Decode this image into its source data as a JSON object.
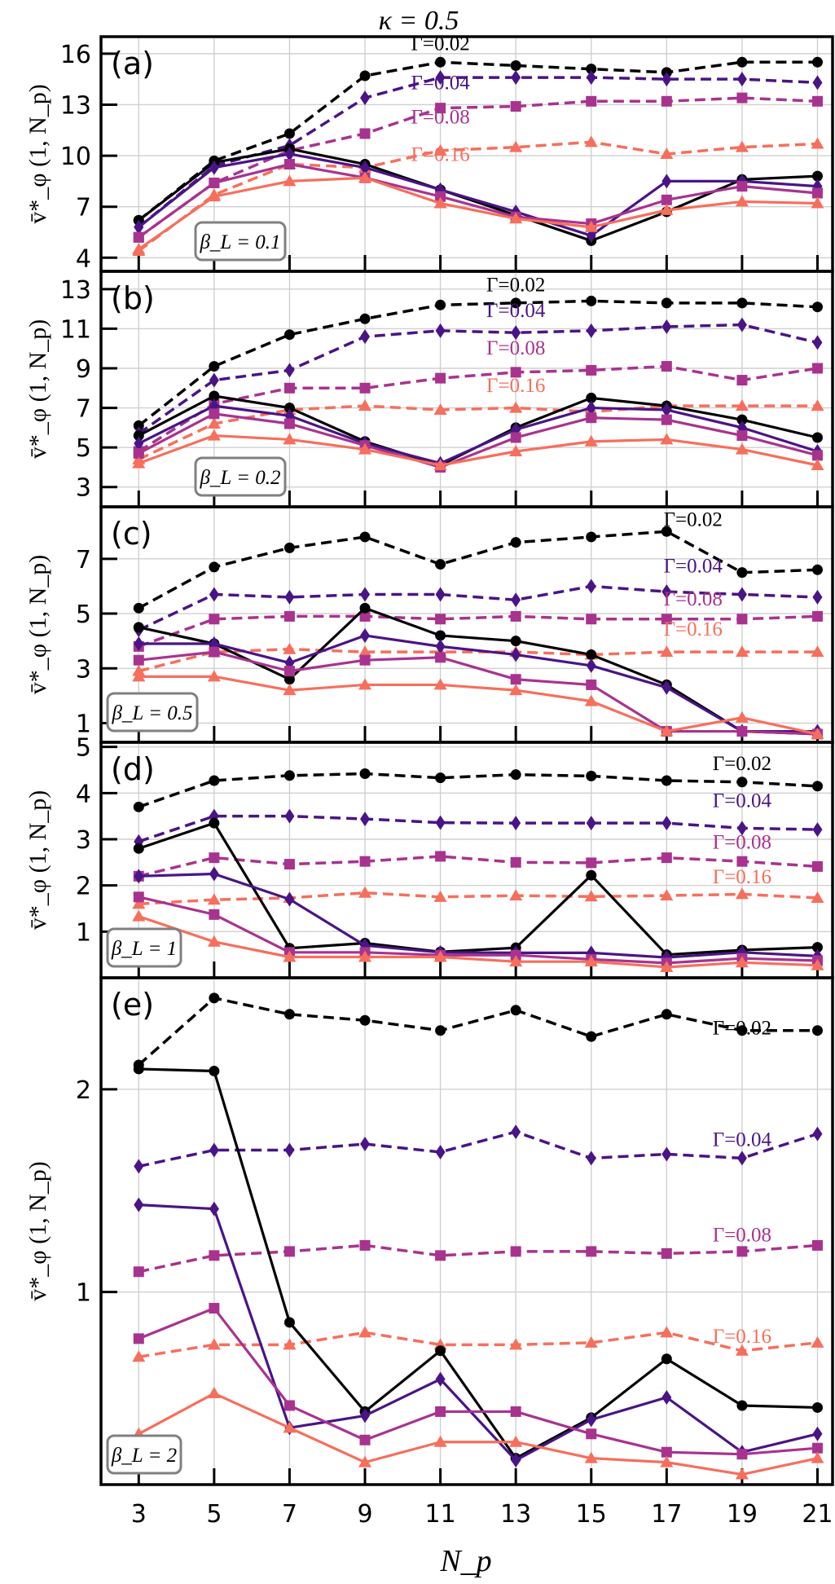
{
  "figure": {
    "title": "κ = 0.5",
    "xlabel": "N_p",
    "ylabel": "v̄*_φ (1, N_p)"
  },
  "legend": {
    "series_colors": {
      "0.02": "#000000",
      "0.04": "#4a1486",
      "0.08": "#a8338f",
      "0.16": "#f66f5c"
    },
    "line_styles": {
      "dashed": "Γ (driven) series",
      "solid": "companion series"
    }
  },
  "chart_data": [
    {
      "type": "line",
      "panel": "(a)",
      "annotation": "β_L = 0.1",
      "x": [
        3,
        5,
        7,
        9,
        11,
        13,
        15,
        17,
        19,
        21
      ],
      "yticks": [
        4,
        7,
        10,
        13,
        16
      ],
      "ylim": [
        3.2,
        17.0
      ],
      "grid": true,
      "series": [
        {
          "name": "Γ=0.02",
          "gamma": "0.02",
          "style": "dashed",
          "marker": "circle",
          "values": [
            6.2,
            9.7,
            11.3,
            14.7,
            15.5,
            15.3,
            15.1,
            14.9,
            15.5,
            15.5
          ]
        },
        {
          "name": "Γ=0.04",
          "gamma": "0.04",
          "style": "dashed",
          "marker": "diamond",
          "values": [
            5.8,
            9.4,
            10.6,
            13.4,
            14.6,
            14.6,
            14.6,
            14.5,
            14.5,
            14.3
          ]
        },
        {
          "name": "Γ=0.08",
          "gamma": "0.08",
          "style": "dashed",
          "marker": "square",
          "values": [
            5.2,
            8.4,
            10.3,
            11.3,
            12.8,
            12.9,
            13.2,
            13.2,
            13.4,
            13.2
          ]
        },
        {
          "name": "Γ=0.16",
          "gamma": "0.16",
          "style": "dashed",
          "marker": "triangle",
          "values": [
            4.4,
            7.7,
            9.5,
            9.3,
            10.3,
            10.5,
            10.8,
            10.1,
            10.5,
            10.7
          ]
        },
        {
          "name": "Γ=0.02 solid",
          "gamma": "0.02",
          "style": "solid",
          "marker": "circle",
          "values": [
            6.2,
            9.6,
            10.4,
            9.5,
            8.0,
            6.5,
            5.0,
            6.7,
            8.6,
            8.8
          ]
        },
        {
          "name": "Γ=0.04 solid",
          "gamma": "0.04",
          "style": "solid",
          "marker": "diamond",
          "values": [
            5.8,
            9.3,
            10.1,
            9.3,
            8.0,
            6.7,
            5.3,
            8.5,
            8.5,
            8.2
          ]
        },
        {
          "name": "Γ=0.08 solid",
          "gamma": "0.08",
          "style": "solid",
          "marker": "square",
          "values": [
            5.2,
            8.4,
            9.5,
            8.7,
            7.6,
            6.4,
            6.0,
            7.4,
            8.2,
            7.8
          ]
        },
        {
          "name": "Γ=0.16 solid",
          "gamma": "0.16",
          "style": "solid",
          "marker": "triangle",
          "values": [
            4.5,
            7.6,
            8.5,
            8.7,
            7.2,
            6.3,
            5.8,
            6.8,
            7.3,
            7.2
          ]
        }
      ],
      "labels": [
        {
          "text": "Γ=0.02",
          "gamma": "0.02",
          "x": 11,
          "y": 16.2
        },
        {
          "text": "Γ=0.04",
          "gamma": "0.04",
          "x": 11,
          "y": 13.9
        },
        {
          "text": "Γ=0.08",
          "gamma": "0.08",
          "x": 11,
          "y": 11.9
        },
        {
          "text": "Γ=0.16",
          "gamma": "0.16",
          "x": 11,
          "y": 9.7
        }
      ]
    },
    {
      "type": "line",
      "panel": "(b)",
      "annotation": "β_L = 0.2",
      "x": [
        3,
        5,
        7,
        9,
        11,
        13,
        15,
        17,
        19,
        21
      ],
      "yticks": [
        3,
        5,
        7,
        9,
        11,
        13
      ],
      "ylim": [
        2.0,
        13.9
      ],
      "grid": true,
      "series": [
        {
          "name": "Γ=0.02",
          "gamma": "0.02",
          "style": "dashed",
          "marker": "circle",
          "values": [
            6.1,
            9.1,
            10.7,
            11.5,
            12.2,
            12.3,
            12.4,
            12.3,
            12.3,
            12.1
          ]
        },
        {
          "name": "Γ=0.04",
          "gamma": "0.04",
          "style": "dashed",
          "marker": "diamond",
          "values": [
            5.7,
            8.4,
            8.9,
            10.6,
            10.9,
            10.8,
            10.9,
            11.1,
            11.2,
            10.3
          ]
        },
        {
          "name": "Γ=0.08",
          "gamma": "0.08",
          "style": "dashed",
          "marker": "square",
          "values": [
            4.8,
            7.2,
            8.0,
            8.0,
            8.5,
            8.8,
            8.9,
            9.1,
            8.4,
            9.0
          ]
        },
        {
          "name": "Γ=0.16",
          "gamma": "0.16",
          "style": "dashed",
          "marker": "triangle",
          "values": [
            4.4,
            6.2,
            6.9,
            7.1,
            6.9,
            7.0,
            6.8,
            7.1,
            7.1,
            7.1
          ]
        },
        {
          "name": "Γ=0.02 solid",
          "gamma": "0.02",
          "style": "solid",
          "marker": "circle",
          "values": [
            5.6,
            7.6,
            7.0,
            5.3,
            4.1,
            6.0,
            7.5,
            7.1,
            6.4,
            5.5
          ]
        },
        {
          "name": "Γ=0.04 solid",
          "gamma": "0.04",
          "style": "solid",
          "marker": "diamond",
          "values": [
            5.2,
            7.1,
            6.6,
            5.2,
            4.2,
            5.9,
            7.0,
            6.9,
            6.0,
            4.8
          ]
        },
        {
          "name": "Γ=0.08 solid",
          "gamma": "0.08",
          "style": "solid",
          "marker": "square",
          "values": [
            4.7,
            6.7,
            6.2,
            5.1,
            4.0,
            5.5,
            6.5,
            6.4,
            5.6,
            4.6
          ]
        },
        {
          "name": "Γ=0.16 solid",
          "gamma": "0.16",
          "style": "solid",
          "marker": "triangle",
          "values": [
            4.2,
            5.6,
            5.4,
            4.9,
            4.1,
            4.8,
            5.3,
            5.4,
            4.9,
            4.1
          ]
        }
      ],
      "labels": [
        {
          "text": "Γ=0.02",
          "gamma": "0.02",
          "x": 13,
          "y": 12.9
        },
        {
          "text": "Γ=0.04",
          "gamma": "0.04",
          "x": 13,
          "y": 11.6
        },
        {
          "text": "Γ=0.08",
          "gamma": "0.08",
          "x": 13,
          "y": 9.7
        },
        {
          "text": "Γ=0.16",
          "gamma": "0.16",
          "x": 13,
          "y": 7.8
        }
      ]
    },
    {
      "type": "line",
      "panel": "(c)",
      "annotation": "β_L = 0.5",
      "x": [
        3,
        5,
        7,
        9,
        11,
        13,
        15,
        17,
        19,
        21
      ],
      "yticks": [
        1,
        3,
        5,
        7
      ],
      "ylim": [
        0.3,
        8.9
      ],
      "grid": true,
      "series": [
        {
          "name": "Γ=0.02",
          "gamma": "0.02",
          "style": "dashed",
          "marker": "circle",
          "values": [
            5.2,
            6.7,
            7.4,
            7.8,
            6.8,
            7.6,
            7.8,
            8.0,
            6.5,
            6.6
          ]
        },
        {
          "name": "Γ=0.04",
          "gamma": "0.04",
          "style": "dashed",
          "marker": "diamond",
          "values": [
            4.4,
            5.7,
            5.6,
            5.7,
            5.7,
            5.5,
            6.0,
            5.8,
            5.7,
            5.6
          ]
        },
        {
          "name": "Γ=0.08",
          "gamma": "0.08",
          "style": "dashed",
          "marker": "square",
          "values": [
            3.8,
            4.8,
            4.9,
            4.9,
            4.8,
            4.9,
            4.8,
            4.8,
            4.8,
            4.9
          ]
        },
        {
          "name": "Γ=0.16",
          "gamma": "0.16",
          "style": "dashed",
          "marker": "triangle",
          "values": [
            2.9,
            3.6,
            3.7,
            3.6,
            3.6,
            3.6,
            3.5,
            3.6,
            3.6,
            3.6
          ]
        },
        {
          "name": "Γ=0.02 solid",
          "gamma": "0.02",
          "style": "solid",
          "marker": "circle",
          "values": [
            4.5,
            3.9,
            2.6,
            5.2,
            4.2,
            4.0,
            3.5,
            2.4,
            0.7,
            0.6
          ]
        },
        {
          "name": "Γ=0.04 solid",
          "gamma": "0.04",
          "style": "solid",
          "marker": "diamond",
          "values": [
            3.9,
            3.9,
            3.2,
            4.2,
            3.8,
            3.5,
            3.1,
            2.3,
            0.7,
            0.7
          ]
        },
        {
          "name": "Γ=0.08 solid",
          "gamma": "0.08",
          "style": "solid",
          "marker": "square",
          "values": [
            3.3,
            3.6,
            2.9,
            3.3,
            3.4,
            2.6,
            2.4,
            0.7,
            0.7,
            0.6
          ]
        },
        {
          "name": "Γ=0.16 solid",
          "gamma": "0.16",
          "style": "solid",
          "marker": "triangle",
          "values": [
            2.7,
            2.7,
            2.2,
            2.4,
            2.4,
            2.2,
            1.8,
            0.7,
            1.2,
            0.6
          ]
        }
      ],
      "labels": [
        {
          "text": "Γ=0.02",
          "gamma": "0.02",
          "x": 17.7,
          "y": 8.2
        },
        {
          "text": "Γ=0.04",
          "gamma": "0.04",
          "x": 17.7,
          "y": 6.5
        },
        {
          "text": "Γ=0.08",
          "gamma": "0.08",
          "x": 17.7,
          "y": 5.3
        },
        {
          "text": "Γ=0.16",
          "gamma": "0.16",
          "x": 17.7,
          "y": 4.2
        }
      ]
    },
    {
      "type": "line",
      "panel": "(d)",
      "annotation": "β_L = 1",
      "x": [
        3,
        5,
        7,
        9,
        11,
        13,
        15,
        17,
        19,
        21
      ],
      "yticks": [
        1,
        2,
        3,
        4,
        5
      ],
      "ylim": [
        0.0,
        5.1
      ],
      "grid": true,
      "series": [
        {
          "name": "Γ=0.02",
          "gamma": "0.02",
          "style": "dashed",
          "marker": "circle",
          "values": [
            3.7,
            4.27,
            4.38,
            4.42,
            4.33,
            4.4,
            4.37,
            4.27,
            4.24,
            4.15
          ]
        },
        {
          "name": "Γ=0.04",
          "gamma": "0.04",
          "style": "dashed",
          "marker": "diamond",
          "values": [
            2.95,
            3.5,
            3.5,
            3.44,
            3.36,
            3.35,
            3.35,
            3.35,
            3.24,
            3.21
          ]
        },
        {
          "name": "Γ=0.08",
          "gamma": "0.08",
          "style": "dashed",
          "marker": "square",
          "values": [
            2.2,
            2.6,
            2.46,
            2.52,
            2.63,
            2.5,
            2.49,
            2.6,
            2.52,
            2.41
          ]
        },
        {
          "name": "Γ=0.16",
          "gamma": "0.16",
          "style": "dashed",
          "marker": "triangle",
          "values": [
            1.6,
            1.69,
            1.73,
            1.84,
            1.75,
            1.78,
            1.76,
            1.78,
            1.81,
            1.73
          ]
        },
        {
          "name": "Γ=0.02 solid",
          "gamma": "0.02",
          "style": "solid",
          "marker": "circle",
          "values": [
            2.8,
            3.35,
            0.64,
            0.75,
            0.56,
            0.65,
            2.22,
            0.5,
            0.6,
            0.66
          ]
        },
        {
          "name": "Γ=0.04 solid",
          "gamma": "0.04",
          "style": "solid",
          "marker": "diamond",
          "values": [
            2.2,
            2.25,
            1.7,
            0.7,
            0.55,
            0.54,
            0.54,
            0.44,
            0.55,
            0.47
          ]
        },
        {
          "name": "Γ=0.08 solid",
          "gamma": "0.08",
          "style": "solid",
          "marker": "square",
          "values": [
            1.75,
            1.37,
            0.55,
            0.55,
            0.49,
            0.49,
            0.4,
            0.32,
            0.42,
            0.37
          ]
        },
        {
          "name": "Γ=0.16 solid",
          "gamma": "0.16",
          "style": "solid",
          "marker": "triangle",
          "values": [
            1.33,
            0.78,
            0.45,
            0.45,
            0.45,
            0.35,
            0.35,
            0.23,
            0.33,
            0.27
          ]
        }
      ],
      "labels": [
        {
          "text": "Γ=0.02",
          "gamma": "0.02",
          "x": 19,
          "y": 4.5
        },
        {
          "text": "Γ=0.04",
          "gamma": "0.04",
          "x": 19,
          "y": 3.7
        },
        {
          "text": "Γ=0.08",
          "gamma": "0.08",
          "x": 19,
          "y": 2.8
        },
        {
          "text": "Γ=0.16",
          "gamma": "0.16",
          "x": 19,
          "y": 2.05
        }
      ]
    },
    {
      "type": "line",
      "panel": "(e)",
      "annotation": "β_L = 2",
      "x": [
        3,
        5,
        7,
        9,
        11,
        13,
        15,
        17,
        19,
        21
      ],
      "yticks": [
        1,
        2
      ],
      "ylim": [
        0.05,
        2.55
      ],
      "grid": true,
      "series": [
        {
          "name": "Γ=0.02",
          "gamma": "0.02",
          "style": "dashed",
          "marker": "circle",
          "values": [
            2.12,
            2.45,
            2.37,
            2.34,
            2.29,
            2.39,
            2.26,
            2.37,
            2.29,
            2.29
          ]
        },
        {
          "name": "Γ=0.04",
          "gamma": "0.04",
          "style": "dashed",
          "marker": "diamond",
          "values": [
            1.62,
            1.7,
            1.7,
            1.73,
            1.69,
            1.79,
            1.66,
            1.68,
            1.66,
            1.78
          ]
        },
        {
          "name": "Γ=0.08",
          "gamma": "0.08",
          "style": "dashed",
          "marker": "square",
          "values": [
            1.1,
            1.18,
            1.2,
            1.23,
            1.18,
            1.2,
            1.2,
            1.19,
            1.2,
            1.23
          ]
        },
        {
          "name": "Γ=0.16",
          "gamma": "0.16",
          "style": "dashed",
          "marker": "triangle",
          "values": [
            0.68,
            0.74,
            0.74,
            0.8,
            0.74,
            0.74,
            0.75,
            0.8,
            0.71,
            0.75
          ]
        },
        {
          "name": "Γ=0.02 solid",
          "gamma": "0.02",
          "style": "solid",
          "marker": "circle",
          "values": [
            2.1,
            2.09,
            0.85,
            0.41,
            0.71,
            0.18,
            0.38,
            0.67,
            0.44,
            0.43
          ]
        },
        {
          "name": "Γ=0.04 solid",
          "gamma": "0.04",
          "style": "solid",
          "marker": "diamond",
          "values": [
            1.43,
            1.41,
            0.33,
            0.39,
            0.57,
            0.17,
            0.37,
            0.48,
            0.21,
            0.3
          ]
        },
        {
          "name": "Γ=0.08 solid",
          "gamma": "0.08",
          "style": "solid",
          "marker": "square",
          "values": [
            0.77,
            0.92,
            0.44,
            0.27,
            0.41,
            0.41,
            0.3,
            0.21,
            0.2,
            0.23
          ]
        },
        {
          "name": "Γ=0.16 solid",
          "gamma": "0.16",
          "style": "solid",
          "marker": "triangle",
          "values": [
            0.3,
            0.5,
            0.33,
            0.16,
            0.26,
            0.26,
            0.18,
            0.16,
            0.1,
            0.18
          ]
        }
      ],
      "labels": [
        {
          "text": "Γ=0.02",
          "gamma": "0.02",
          "x": 19,
          "y": 2.27
        },
        {
          "text": "Γ=0.04",
          "gamma": "0.04",
          "x": 19,
          "y": 1.72
        },
        {
          "text": "Γ=0.08",
          "gamma": "0.08",
          "x": 19,
          "y": 1.25
        },
        {
          "text": "Γ=0.16",
          "gamma": "0.16",
          "x": 19,
          "y": 0.75
        }
      ]
    }
  ]
}
